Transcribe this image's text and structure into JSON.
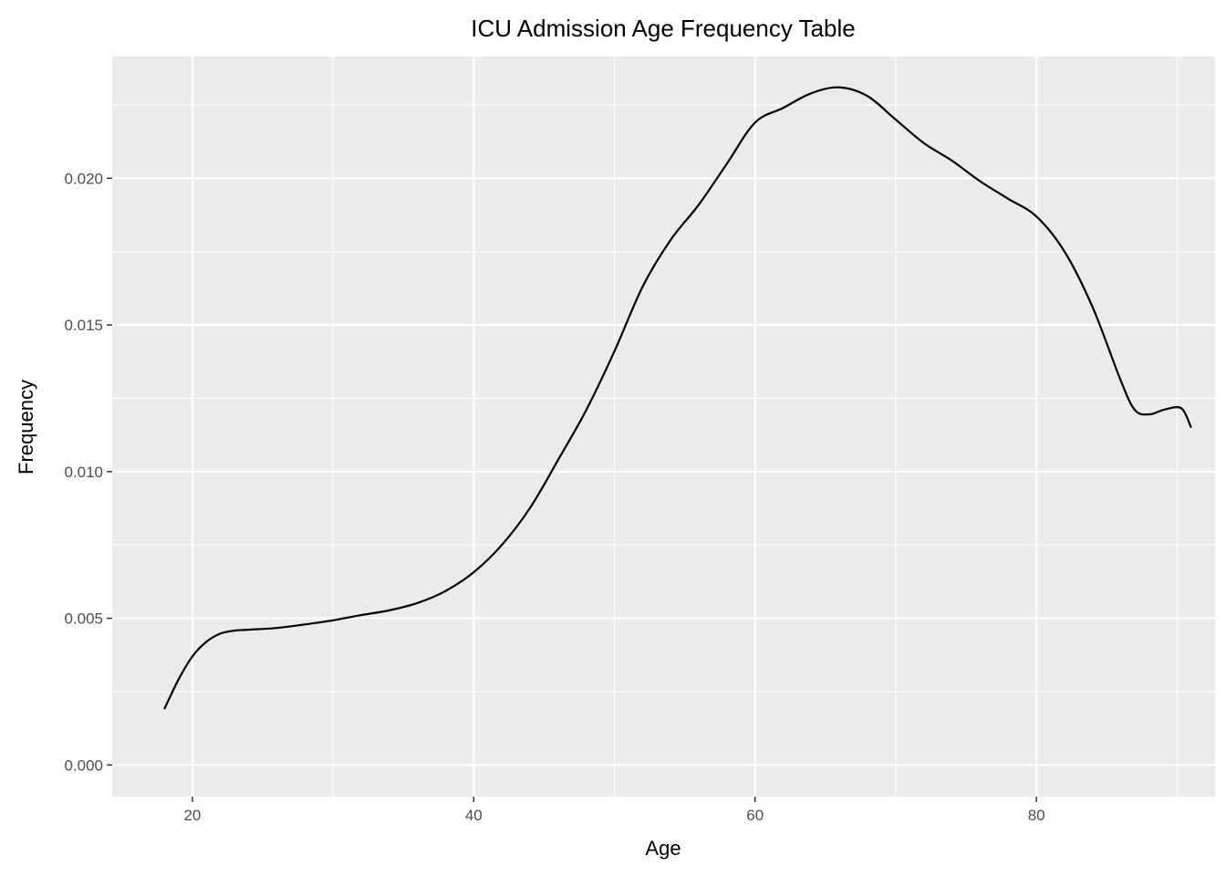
{
  "chart_data": {
    "type": "line",
    "title": "ICU Admission Age Frequency Table",
    "xlabel": "Age",
    "ylabel": "Frequency",
    "xlim": [
      14.3,
      92.7
    ],
    "ylim": [
      -0.00108,
      0.02415
    ],
    "x_ticks": [
      20,
      40,
      60,
      80
    ],
    "x_tick_labels": [
      "20",
      "40",
      "60",
      "80"
    ],
    "x_minor_ticks": [
      30,
      50,
      70,
      90
    ],
    "y_ticks": [
      0.0,
      0.005,
      0.01,
      0.015,
      0.02
    ],
    "y_tick_labels": [
      "0.000",
      "0.005",
      "0.010",
      "0.015",
      "0.020"
    ],
    "y_minor_ticks": [
      0.0025,
      0.0075,
      0.0125,
      0.0175,
      0.0225
    ],
    "grid": true,
    "legend": "none",
    "series": [
      {
        "x": [
          18,
          19,
          20,
          21,
          22,
          23,
          24,
          26,
          28,
          30,
          32,
          34,
          36,
          38,
          40,
          42,
          44,
          46,
          48,
          50,
          52,
          54,
          56,
          58,
          60,
          62,
          64,
          66,
          68,
          70,
          72,
          74,
          76,
          78,
          80,
          82,
          84,
          86,
          87,
          88,
          89,
          90,
          90.5,
          91
        ],
        "y": [
          0.0019,
          0.0029,
          0.0037,
          0.0042,
          0.00448,
          0.00458,
          0.00461,
          0.00467,
          0.00479,
          0.00493,
          0.00511,
          0.00527,
          0.00552,
          0.00593,
          0.00657,
          0.0075,
          0.00876,
          0.0104,
          0.0121,
          0.0141,
          0.0163,
          0.0179,
          0.0191,
          0.0205,
          0.0219,
          0.0224,
          0.0229,
          0.0231,
          0.0228,
          0.022,
          0.0212,
          0.0206,
          0.0199,
          0.0193,
          0.0187,
          0.0175,
          0.0156,
          0.0131,
          0.0121,
          0.01195,
          0.0121,
          0.0122,
          0.01205,
          0.0115
        ]
      }
    ],
    "colors": {
      "panel_background": "#ebebeb",
      "grid_major": "#ffffff",
      "line": "#000000",
      "tick_text": "#4d4d4d",
      "tick_mark": "#333333"
    }
  }
}
